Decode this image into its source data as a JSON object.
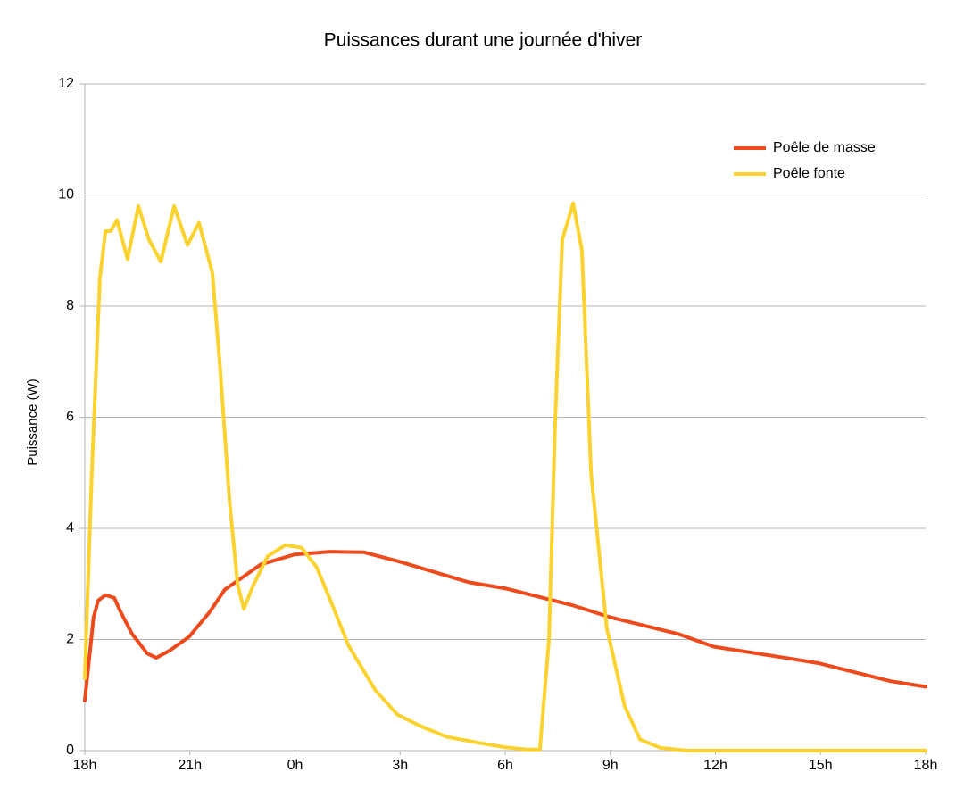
{
  "chart_data": {
    "type": "line",
    "title": "Puissances durant une journée d'hiver",
    "y_label": "Puissance (W)",
    "xlim": [
      0,
      24
    ],
    "xticks": [
      {
        "value": 0,
        "label": "18h"
      },
      {
        "value": 3,
        "label": "21h"
      },
      {
        "value": 6,
        "label": "0h"
      },
      {
        "value": 9,
        "label": "3h"
      },
      {
        "value": 12,
        "label": "6h"
      },
      {
        "value": 15,
        "label": "9h"
      },
      {
        "value": 18,
        "label": "12h"
      },
      {
        "value": 21,
        "label": "15h"
      },
      {
        "value": 24,
        "label": "18h"
      }
    ],
    "ylim": [
      0,
      12
    ],
    "yticks": [
      0,
      2,
      4,
      6,
      8,
      10,
      12
    ],
    "grid": true,
    "legend": "top-right",
    "series": [
      {
        "name": "Poêle de masse",
        "color": "#ee4a1c",
        "x": [
          0,
          0.25,
          0.38,
          0.59,
          0.84,
          1.02,
          1.35,
          1.78,
          2.04,
          2.42,
          2.98,
          3.57,
          4.0,
          4.46,
          5.02,
          5.99,
          7.0,
          7.97,
          8.99,
          10.96,
          12.0,
          13.9,
          15.0,
          16.94,
          17.96,
          20.0,
          20.97,
          23.0,
          24
        ],
        "values": [
          0.9,
          2.4,
          2.7,
          2.8,
          2.75,
          2.5,
          2.1,
          1.75,
          1.67,
          1.8,
          2.05,
          2.5,
          2.9,
          3.1,
          3.35,
          3.53,
          3.58,
          3.57,
          3.4,
          3.03,
          2.92,
          2.62,
          2.4,
          2.1,
          1.87,
          1.67,
          1.57,
          1.25,
          1.15
        ]
      },
      {
        "name": "Poêle fonte",
        "color": "#fbd22e",
        "x": [
          0,
          0.2,
          0.43,
          0.59,
          0.74,
          0.92,
          1.22,
          1.53,
          1.83,
          2.17,
          2.55,
          2.93,
          3.26,
          3.64,
          3.85,
          4.13,
          4.36,
          4.54,
          4.79,
          5.22,
          5.73,
          6.19,
          6.62,
          7.08,
          7.52,
          8.28,
          8.92,
          9.55,
          10.32,
          11.34,
          12.0,
          12.61,
          12.99,
          13.25,
          13.43,
          13.63,
          13.94,
          14.19,
          14.45,
          14.9,
          15.41,
          15.85,
          16.43,
          17.2,
          18,
          21,
          24
        ],
        "values": [
          1.3,
          5,
          8.5,
          9.35,
          9.35,
          9.55,
          8.85,
          9.8,
          9.2,
          8.8,
          9.8,
          9.1,
          9.5,
          8.6,
          7,
          4.5,
          3,
          2.55,
          2.95,
          3.5,
          3.7,
          3.65,
          3.3,
          2.6,
          1.9,
          1.1,
          0.65,
          0.45,
          0.25,
          0.13,
          0.06,
          0.02,
          0.02,
          2,
          6,
          9.2,
          9.85,
          9,
          5,
          2.2,
          0.8,
          0.2,
          0.05,
          0,
          0,
          0,
          0
        ]
      }
    ]
  }
}
